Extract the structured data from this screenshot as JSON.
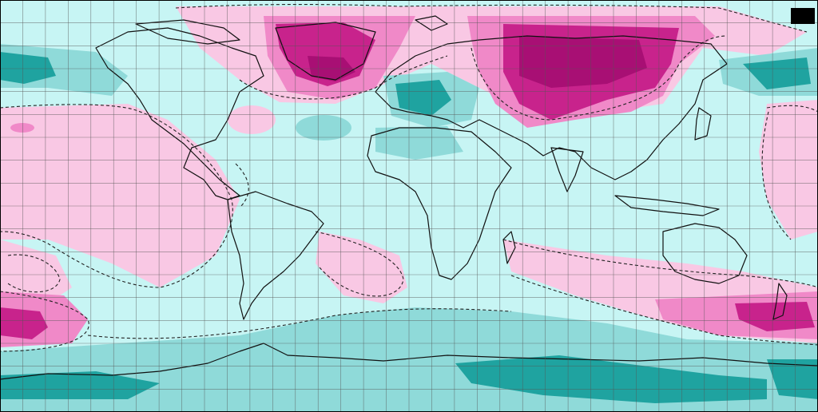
{
  "map": {
    "projection": "equirectangular",
    "graticule_spacing_deg": 10,
    "palette": {
      "strong_negative": "#1fa3a0",
      "negative": "#8fdad9",
      "weak_negative": "#c7f5f4",
      "neutral": "#ffffff",
      "weak_positive": "#f9c8e4",
      "positive": "#f089c8",
      "strong_positive": "#c8238c",
      "extreme_positive": "#a80f74",
      "graticule": "#555555",
      "coastline": "#111111",
      "zero_contour": "#222222"
    }
  }
}
